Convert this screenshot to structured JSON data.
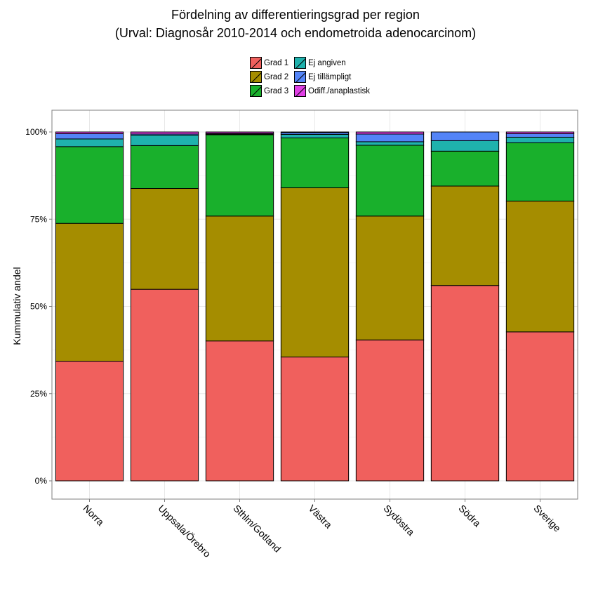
{
  "chart_data": {
    "type": "bar",
    "stacked": true,
    "title": "Fördelning av differentieringsgrad per region",
    "subtitle": "(Urval: Diagnosår 2010-2014 och endometroida adenocarcinom)",
    "ylabel": "Kummulativ andel",
    "xlabel": "",
    "ylim": [
      0,
      1
    ],
    "yticks": [
      "0%",
      "25%",
      "50%",
      "75%",
      "100%"
    ],
    "grid": true,
    "legend_position": "top",
    "categories": [
      "Norra",
      "Uppsala/Örebro",
      "Sthlm/Gotland",
      "Västra",
      "Sydöstra",
      "Södra",
      "Sverige"
    ],
    "series": [
      {
        "name": "Grad 1",
        "color": "#F0605D",
        "values": [
          0.343,
          0.549,
          0.401,
          0.355,
          0.404,
          0.56,
          0.427
        ]
      },
      {
        "name": "Grad 2",
        "color": "#A58D00",
        "values": [
          0.395,
          0.289,
          0.358,
          0.485,
          0.355,
          0.285,
          0.375
        ]
      },
      {
        "name": "Grad 3",
        "color": "#19B02C",
        "values": [
          0.22,
          0.123,
          0.233,
          0.143,
          0.203,
          0.1,
          0.167
        ]
      },
      {
        "name": "Ej angiven",
        "color": "#1FB2AD",
        "values": [
          0.022,
          0.03,
          0.002,
          0.01,
          0.01,
          0.03,
          0.016
        ]
      },
      {
        "name": "Ej tillämpligt",
        "color": "#5384F7",
        "values": [
          0.015,
          0.003,
          0.002,
          0.005,
          0.022,
          0.025,
          0.01
        ]
      },
      {
        "name": "Odiff./anaplastisk",
        "color": "#E03FE5",
        "values": [
          0.005,
          0.006,
          0.004,
          0.002,
          0.006,
          0.0,
          0.005
        ]
      }
    ]
  }
}
